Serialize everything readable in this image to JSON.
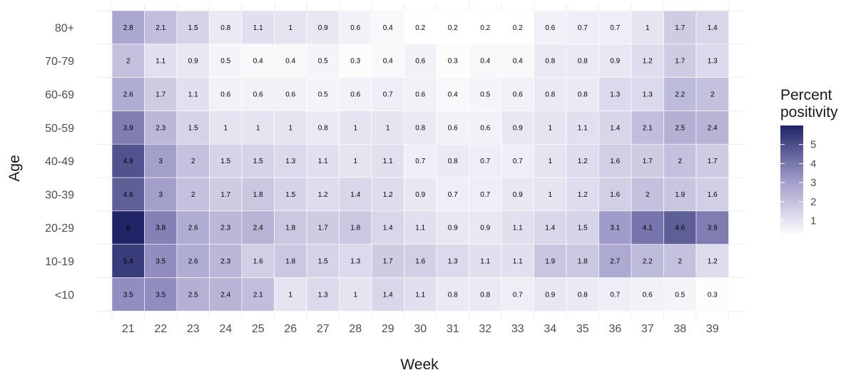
{
  "chart_data": {
    "type": "heatmap",
    "title": "",
    "xlabel": "Week",
    "ylabel": "Age",
    "x": [
      "21",
      "22",
      "23",
      "24",
      "25",
      "26",
      "27",
      "28",
      "29",
      "30",
      "31",
      "32",
      "33",
      "34",
      "35",
      "36",
      "37",
      "38",
      "39"
    ],
    "y": [
      "<10",
      "10-19",
      "20-29",
      "30-39",
      "40-49",
      "50-59",
      "60-69",
      "70-79",
      "80+"
    ],
    "values": [
      [
        3.5,
        3.5,
        2.5,
        2.4,
        2.1,
        1,
        1.3,
        1,
        1.4,
        1.1,
        0.8,
        0.8,
        0.7,
        0.9,
        0.8,
        0.7,
        0.6,
        0.5,
        0.3
      ],
      [
        5.4,
        3.5,
        2.6,
        2.3,
        1.6,
        1.8,
        1.5,
        1.3,
        1.7,
        1.6,
        1.3,
        1.1,
        1.1,
        1.9,
        1.8,
        2.7,
        2.2,
        2,
        1.2
      ],
      [
        6,
        3.8,
        2.6,
        2.3,
        2.4,
        1.8,
        1.7,
        1.8,
        1.4,
        1.1,
        0.9,
        0.9,
        1.1,
        1.4,
        1.5,
        3.1,
        4.1,
        4.6,
        3.9
      ],
      [
        4.6,
        3,
        2,
        1.7,
        1.8,
        1.5,
        1.2,
        1.4,
        1.2,
        0.9,
        0.7,
        0.7,
        0.9,
        1,
        1.2,
        1.6,
        2,
        1.9,
        1.6
      ],
      [
        4.9,
        3,
        2,
        1.5,
        1.5,
        1.3,
        1.1,
        1,
        1.1,
        0.7,
        0.8,
        0.7,
        0.7,
        1,
        1.2,
        1.6,
        1.7,
        2,
        1.7
      ],
      [
        3.9,
        2.3,
        1.5,
        1,
        1,
        1,
        0.8,
        1,
        1,
        0.8,
        0.6,
        0.6,
        0.9,
        1,
        1.1,
        1.4,
        2.1,
        2.5,
        2.4
      ],
      [
        2.6,
        1.7,
        1.1,
        0.6,
        0.6,
        0.6,
        0.5,
        0.6,
        0.7,
        0.6,
        0.4,
        0.5,
        0.6,
        0.8,
        0.8,
        1.3,
        1.3,
        2.2,
        2
      ],
      [
        2,
        1.1,
        0.9,
        0.5,
        0.4,
        0.4,
        0.5,
        0.3,
        0.4,
        0.6,
        0.3,
        0.4,
        0.4,
        0.8,
        0.8,
        0.9,
        1.2,
        1.7,
        1.3
      ],
      [
        2.8,
        2.1,
        1.5,
        0.8,
        1.1,
        1,
        0.9,
        0.6,
        0.4,
        0.2,
        0.2,
        0.2,
        0.2,
        0.6,
        0.7,
        0.7,
        1,
        1.7,
        1.4
      ]
    ],
    "legend": {
      "title_lines": [
        "Percent",
        "positivity"
      ],
      "ticks": [
        1,
        2,
        3,
        4,
        5
      ],
      "range": [
        0.2,
        6
      ],
      "color_low": "#ffffff",
      "color_high": "#1f2466",
      "placement": "right"
    },
    "grid": true,
    "grid_color": "#ebebeb"
  }
}
